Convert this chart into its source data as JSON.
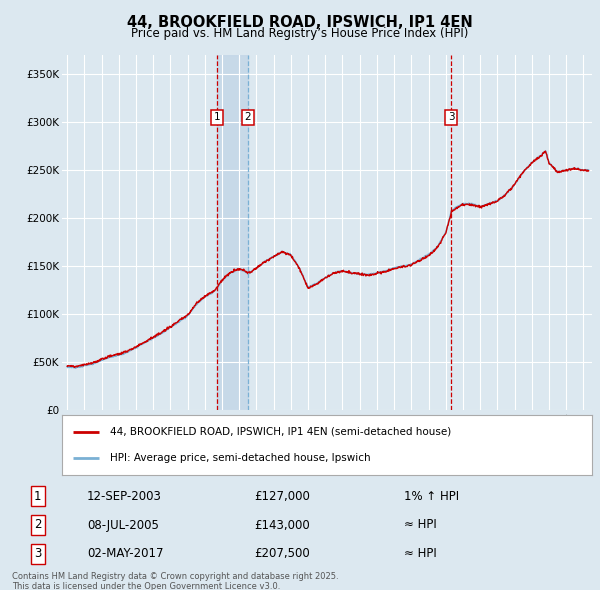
{
  "title": "44, BROOKFIELD ROAD, IPSWICH, IP1 4EN",
  "subtitle": "Price paid vs. HM Land Registry’s House Price Index (HPI)",
  "red_label": "44, BROOKFIELD ROAD, IPSWICH, IP1 4EN (semi-detached house)",
  "blue_label": "HPI: Average price, semi-detached house, Ipswich",
  "footer": "Contains HM Land Registry data © Crown copyright and database right 2025.\nThis data is licensed under the Open Government Licence v3.0.",
  "ylim": [
    0,
    370000
  ],
  "yticks": [
    0,
    50000,
    100000,
    150000,
    200000,
    250000,
    300000,
    350000
  ],
  "xlim_start": 1994.7,
  "xlim_end": 2025.5,
  "bg_color": "#dce8f0",
  "plot_bg": "#dce8f0",
  "t1_x": 2003.7,
  "t2_x": 2005.5,
  "t3_x": 2017.33,
  "t1_y": 127000,
  "t2_y": 143000,
  "t3_y": 207500,
  "shade_color": "#c5d8e8",
  "grid_color": "#ffffff",
  "red_color": "#cc0000",
  "blue_color": "#7ab0d4"
}
